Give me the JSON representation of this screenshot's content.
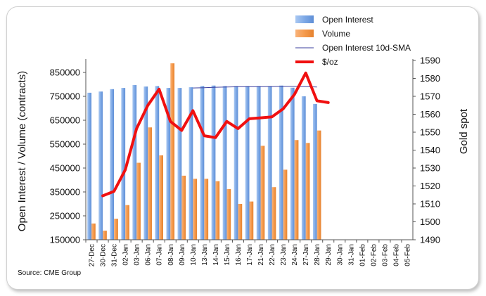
{
  "source": "Source: CME Group",
  "chart_data": {
    "type": "bar",
    "categories": [
      "27-Dec",
      "30-Dec",
      "31-Dec",
      "02-Jan",
      "03-Jan",
      "06-Jan",
      "07-Jan",
      "08-Jan",
      "09-Jan",
      "10-Jan",
      "13-Jan",
      "14-Jan",
      "15-Jan",
      "16-Jan",
      "17-Jan",
      "21-Jan",
      "22-Jan",
      "23-Jan",
      "24-Jan",
      "27-Jan",
      "28-Jan",
      "29-Jan",
      "30-Jan",
      "31-Jan",
      "01-Feb",
      "02-Feb",
      "03-Feb",
      "04-Feb",
      "05-Feb"
    ],
    "ylabel_left": "Open Interest / Volume (contracts)",
    "ylabel_right": "Gold spot",
    "ylim_left": [
      150000,
      900000
    ],
    "yticks_left": [
      "850000",
      "750000",
      "650000",
      "550000",
      "450000",
      "350000",
      "250000",
      "150000"
    ],
    "ylim_right": [
      1490,
      1590
    ],
    "yticks_right": [
      "1590",
      "1580",
      "1570",
      "1560",
      "1550",
      "1540",
      "1530",
      "1520",
      "1510",
      "1500",
      "1490"
    ],
    "legend_position": "top-right",
    "series": [
      {
        "name": "Open Interest",
        "type": "bar",
        "color": "#7ea9e6",
        "values": [
          765000,
          770000,
          780000,
          785000,
          797000,
          791000,
          793000,
          785000,
          785000,
          788000,
          793000,
          795000,
          793000,
          793000,
          793000,
          793000,
          793000,
          795000,
          786000,
          750000,
          718000,
          null,
          null,
          null,
          null,
          null,
          null,
          null,
          null
        ]
      },
      {
        "name": "Volume",
        "type": "bar",
        "color": "#f59a4c",
        "values": [
          218000,
          188000,
          238000,
          295000,
          472000,
          620000,
          503000,
          888000,
          418000,
          405000,
          405000,
          395000,
          362000,
          300000,
          310000,
          543000,
          370000,
          443000,
          567000,
          555000,
          607000,
          null,
          null,
          null,
          null,
          null,
          null,
          null,
          null
        ]
      },
      {
        "name": "Open Interest 10d-SMA",
        "type": "line",
        "color": "#3b3f9e",
        "values": [
          null,
          null,
          null,
          null,
          null,
          null,
          null,
          null,
          null,
          785000,
          786000,
          788000,
          789000,
          790000,
          790000,
          790000,
          791000,
          792000,
          792000,
          791000,
          789000,
          null,
          null,
          null,
          null,
          null,
          null,
          null,
          null
        ]
      },
      {
        "name": "$/oz",
        "type": "line",
        "axis": "right",
        "color": "#f01010",
        "values": [
          null,
          1514.5,
          1517,
          1529,
          1552,
          1565,
          1574,
          1556,
          1551,
          1562,
          1548,
          1547,
          1556,
          1552,
          1557.5,
          1558,
          1558.5,
          1563,
          1571,
          1583,
          1567.5,
          1566.5,
          null,
          null,
          null,
          null,
          null,
          null,
          null
        ]
      }
    ]
  }
}
